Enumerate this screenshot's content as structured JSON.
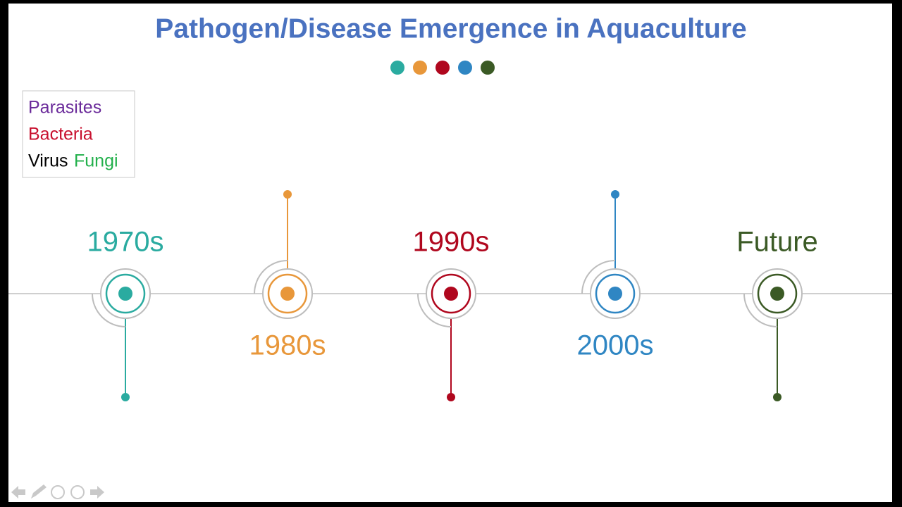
{
  "header": {
    "title": "Pathogen/Disease Emergence in Aquaculture"
  },
  "legend": {
    "items": [
      "Parasites",
      "Bacteria",
      "Virus",
      "Fungi"
    ]
  },
  "timeline": {
    "nodes": [
      {
        "label": "1970s"
      },
      {
        "label": "1980s"
      },
      {
        "label": "1990s"
      },
      {
        "label": "2000s"
      },
      {
        "label": "Future"
      }
    ]
  }
}
